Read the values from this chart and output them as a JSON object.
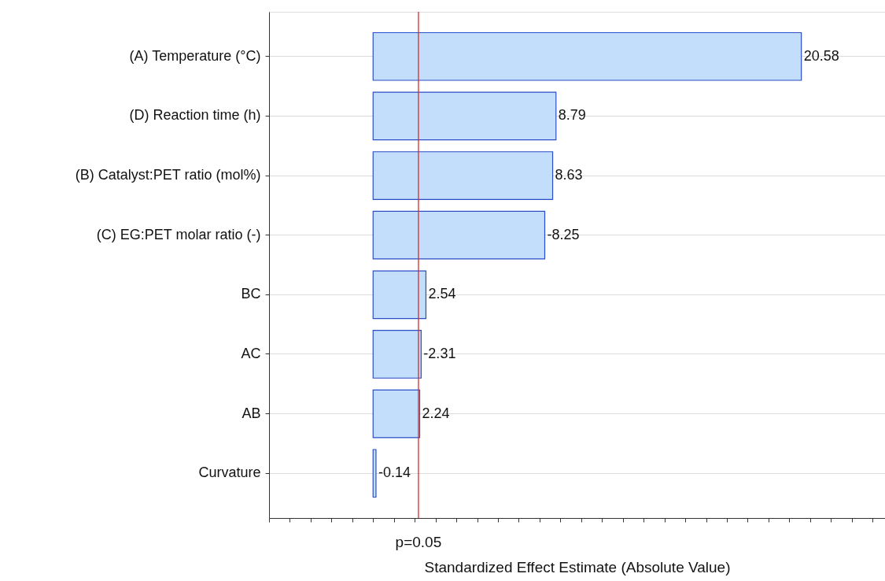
{
  "chart_data": {
    "type": "bar",
    "orientation": "horizontal",
    "categories": [
      "(A) Temperature (°C)",
      "(D) Reaction time (h)",
      "(B) Catalyst:PET ratio (mol%)",
      "(C) EG:PET molar ratio (-)",
      "BC",
      "AC",
      "AB",
      "Curvature"
    ],
    "values": [
      20.58,
      8.79,
      8.63,
      8.25,
      2.54,
      2.31,
      2.24,
      0.14
    ],
    "value_labels": [
      "20.58",
      "8.79",
      "8.63",
      null,
      "2.54",
      null,
      "2.24",
      null
    ],
    "annotations": [
      {
        "text": "-8.25",
        "x": 8.25,
        "y": "(C) EG:PET molar ratio (-)"
      },
      {
        "text": "-2.31",
        "x": 2.31,
        "y": "AC"
      },
      {
        "text": "-0.14",
        "x": 0.14,
        "y": "Curvature"
      },
      "p=0.05"
    ],
    "color": "#c2defb",
    "xlabel": "Standardized Effect Estimate (Absolute Value)",
    "xlim": [
      -5,
      24.6
    ],
    "xticks": [
      {
        "value": -5,
        "label": null
      },
      {
        "value": -4,
        "label": null
      },
      {
        "value": -3,
        "label": null
      },
      {
        "value": -2,
        "label": null
      },
      {
        "value": -1,
        "label": null
      },
      {
        "value": 0,
        "label": null
      },
      {
        "value": 1,
        "label": null
      },
      {
        "value": 2,
        "label": null
      },
      {
        "value": 3,
        "label": null
      },
      {
        "value": 4,
        "label": null
      },
      {
        "value": 5,
        "label": null
      },
      {
        "value": 6,
        "label": null
      },
      {
        "value": 7,
        "label": null
      },
      {
        "value": 8,
        "label": null
      },
      {
        "value": 9,
        "label": null
      },
      {
        "value": 10,
        "label": null
      },
      {
        "value": 11,
        "label": null
      },
      {
        "value": 12,
        "label": null
      },
      {
        "value": 13,
        "label": null
      },
      {
        "value": 14,
        "label": null
      },
      {
        "value": 15,
        "label": null
      },
      {
        "value": 16,
        "label": null
      },
      {
        "value": 17,
        "label": null
      },
      {
        "value": 18,
        "label": null
      },
      {
        "value": 19,
        "label": null
      },
      {
        "value": 20,
        "label": null
      },
      {
        "value": 21,
        "label": null
      },
      {
        "value": 22,
        "label": null
      },
      {
        "value": 23,
        "label": null
      },
      {
        "value": 24,
        "label": null
      }
    ],
    "tick_labels": "y",
    "grid": "y",
    "ref_lines": [
      {
        "axis": "x",
        "value": 2.18,
        "color": "#e02828"
      }
    ]
  }
}
